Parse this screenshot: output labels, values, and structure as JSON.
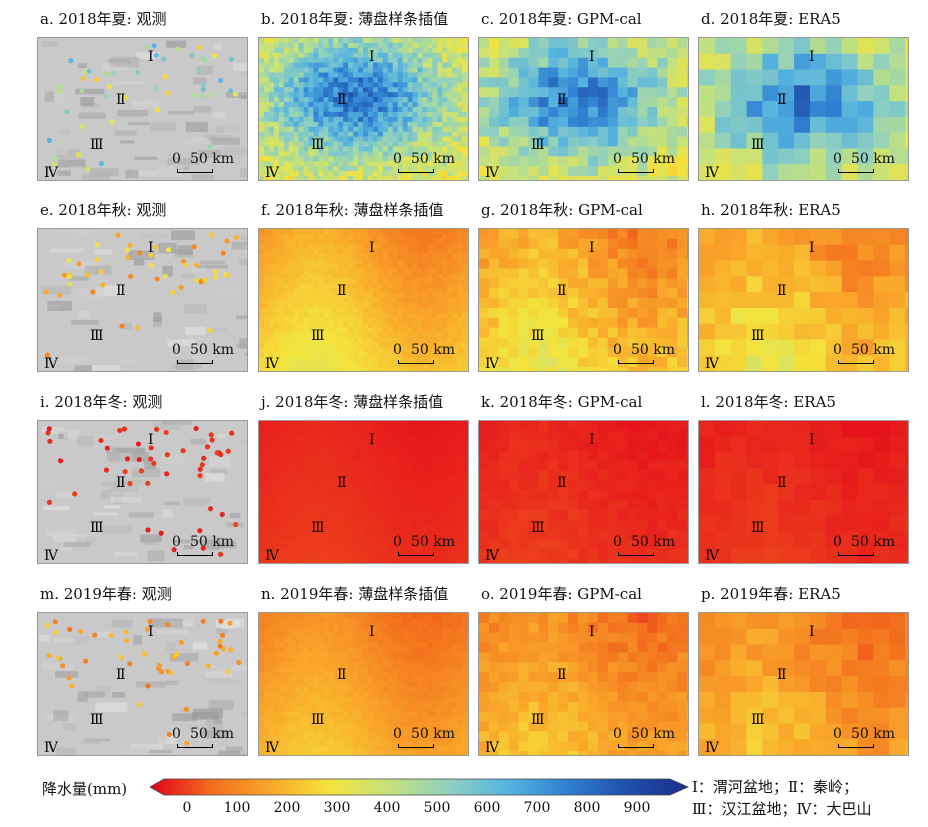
{
  "panels": [
    {
      "title": "a. 2018年夏: 观测",
      "kind": "obs",
      "season": "summer"
    },
    {
      "title": "b. 2018年夏: 薄盘样条插值",
      "kind": "tps",
      "season": "summer"
    },
    {
      "title": "c. 2018年夏: GPM-cal",
      "kind": "gpm",
      "season": "summer"
    },
    {
      "title": "d. 2018年夏: ERA5",
      "kind": "era",
      "season": "summer"
    },
    {
      "title": "e. 2018年秋: 观测",
      "kind": "obs",
      "season": "autumn"
    },
    {
      "title": "f. 2018年秋: 薄盘样条插值",
      "kind": "tps",
      "season": "autumn"
    },
    {
      "title": "g. 2018年秋: GPM-cal",
      "kind": "gpm",
      "season": "autumn"
    },
    {
      "title": "h. 2018年秋: ERA5",
      "kind": "era",
      "season": "autumn"
    },
    {
      "title": "i. 2018年冬: 观测",
      "kind": "obs",
      "season": "winter"
    },
    {
      "title": "j. 2018年冬: 薄盘样条插值",
      "kind": "tps",
      "season": "winter"
    },
    {
      "title": "k. 2018年冬: GPM-cal",
      "kind": "gpm",
      "season": "winter"
    },
    {
      "title": "l. 2018年冬: ERA5",
      "kind": "era",
      "season": "winter"
    },
    {
      "title": "m. 2019年春: 观测",
      "kind": "obs",
      "season": "spring"
    },
    {
      "title": "n. 2019年春: 薄盘样条插值",
      "kind": "tps",
      "season": "spring"
    },
    {
      "title": "o. 2019年春: GPM-cal",
      "kind": "gpm",
      "season": "spring"
    },
    {
      "title": "p. 2019年春: ERA5",
      "kind": "era",
      "season": "spring"
    }
  ],
  "region_labels": [
    "Ⅰ",
    "Ⅱ",
    "Ⅲ",
    "Ⅳ"
  ],
  "scale": {
    "zero": "0",
    "text": "50 km"
  },
  "legend": {
    "label": "降水量(mm)",
    "ticks": [
      "0",
      "100",
      "200",
      "300",
      "400",
      "500",
      "600",
      "700",
      "800",
      "900"
    ],
    "colors": [
      "#e3001b",
      "#f26b1d",
      "#f9a62a",
      "#f4e33c",
      "#c6e27a",
      "#8fd0c0",
      "#55b3e0",
      "#2f7fd0",
      "#1f4fa8",
      "#1a2f8a"
    ]
  },
  "region_key": {
    "line1": "Ⅰ：渭河盆地；Ⅱ：秦岭；",
    "line2": "Ⅲ：汉江盆地；Ⅳ：大巴山"
  },
  "season_values": {
    "summer": 420,
    "autumn": 230,
    "winter": 40,
    "spring": 180
  }
}
